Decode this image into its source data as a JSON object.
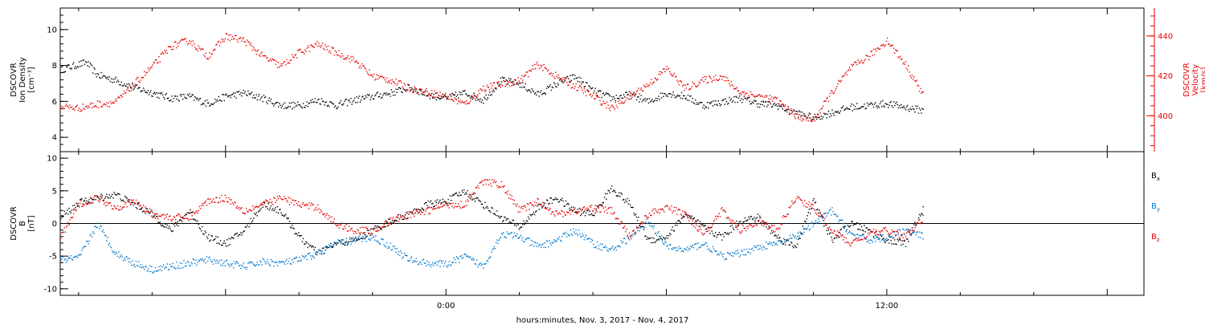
{
  "colors": {
    "black": "#000000",
    "red": "#e60000",
    "blue": "#0077cc",
    "frame": "#000000"
  },
  "xaxis": {
    "label": "hours:minutes, Nov.  3, 2017 - Nov.  4, 2017",
    "range_hours": [
      -10.5,
      19
    ],
    "major_ticks": [
      0,
      12
    ],
    "major_tick_labels": [
      "0:00",
      "12:00"
    ],
    "minor_tick_step_hours": 2
  },
  "chart_data": [
    {
      "type": "scatter",
      "panel": "top",
      "left_axis": {
        "label_lines": [
          "DSCOVR",
          "Ion Density",
          "[cm⁻³]"
        ],
        "ylim": [
          3.2,
          11.2
        ],
        "ticks": [
          4,
          6,
          8,
          10
        ],
        "tick_labels": [
          "4",
          "6",
          "8",
          "10"
        ],
        "color": "#000000"
      },
      "right_axis": {
        "label_lines": [
          "DSCOVR",
          "Velocity",
          "[km/s]"
        ],
        "ylim": [
          382,
          454
        ],
        "ticks": [
          400,
          420,
          440
        ],
        "tick_labels": [
          "400",
          "420",
          "440"
        ],
        "color": "#e60000"
      },
      "series": [
        {
          "axis": "left",
          "color": "#000000",
          "x": [
            -10.5,
            -9.8,
            -9.5,
            -9.0,
            -8.5,
            -8.0,
            -7.5,
            -7.0,
            -6.5,
            -6.0,
            -5.5,
            -5.0,
            -4.5,
            -4.0,
            -3.5,
            -3.0,
            -2.5,
            -2.0,
            -1.5,
            -1.0,
            -0.5,
            0.0,
            0.5,
            1.0,
            1.5,
            2.0,
            2.5,
            3.0,
            3.5,
            4.0,
            4.5,
            5.0,
            5.5,
            6.0,
            6.5,
            7.0,
            7.5,
            8.0,
            8.5,
            9.0,
            9.5,
            10.0,
            10.5,
            11.0,
            11.5,
            12.0,
            12.5,
            13.0
          ],
          "y": [
            7.8,
            8.2,
            7.5,
            7.2,
            6.8,
            6.5,
            6.2,
            6.3,
            5.9,
            6.3,
            6.5,
            6.2,
            5.8,
            5.8,
            6.1,
            5.8,
            6.1,
            6.3,
            6.5,
            6.8,
            6.4,
            6.2,
            6.5,
            6.1,
            7.2,
            7.0,
            6.4,
            7.0,
            7.4,
            6.6,
            6.2,
            6.4,
            6.0,
            6.5,
            6.3,
            5.8,
            6.0,
            6.2,
            5.9,
            5.8,
            5.4,
            5.1,
            5.4,
            5.7,
            5.8,
            5.9,
            5.7,
            5.5
          ]
        },
        {
          "axis": "right",
          "color": "#e60000",
          "x": [
            -10.5,
            -10.0,
            -9.5,
            -9.0,
            -8.5,
            -8.0,
            -7.5,
            -7.0,
            -6.5,
            -6.0,
            -5.5,
            -5.0,
            -4.5,
            -4.0,
            -3.5,
            -3.0,
            -2.5,
            -2.0,
            -1.5,
            -1.0,
            -0.5,
            0.0,
            0.5,
            1.0,
            1.5,
            2.0,
            2.5,
            3.0,
            3.5,
            4.0,
            4.5,
            5.0,
            5.5,
            6.0,
            6.5,
            7.0,
            7.5,
            8.0,
            8.5,
            9.0,
            9.5,
            10.0,
            10.5,
            11.0,
            11.5,
            12.0,
            12.5,
            13.0
          ],
          "y": [
            405,
            404,
            406,
            407,
            416,
            425,
            435,
            438,
            430,
            440,
            438,
            430,
            425,
            432,
            436,
            432,
            428,
            420,
            418,
            414,
            412,
            410,
            406,
            414,
            416,
            418,
            426,
            420,
            415,
            410,
            404,
            410,
            416,
            424,
            414,
            418,
            420,
            412,
            410,
            408,
            400,
            398,
            412,
            424,
            430,
            438,
            426,
            410
          ]
        }
      ]
    },
    {
      "type": "scatter",
      "panel": "bottom",
      "left_axis": {
        "label_lines": [
          "DSCOVR",
          "B",
          "[nT]"
        ],
        "ylim": [
          -11,
          11
        ],
        "ticks": [
          -10,
          -5,
          0,
          5,
          10
        ],
        "tick_labels": [
          "-10",
          "-5",
          "0",
          "5",
          "10"
        ],
        "color": "#000000"
      },
      "zero_line": true,
      "series": [
        {
          "name": "Bx",
          "color": "#000000",
          "x": [
            -10.5,
            -10.0,
            -9.5,
            -9.0,
            -8.5,
            -8.0,
            -7.5,
            -7.0,
            -6.5,
            -6.0,
            -5.5,
            -5.0,
            -4.5,
            -4.0,
            -3.5,
            -3.0,
            -2.5,
            -2.0,
            -1.5,
            -1.0,
            -0.5,
            0.0,
            0.5,
            1.0,
            1.5,
            2.0,
            2.5,
            3.0,
            3.5,
            4.0,
            4.5,
            5.0,
            5.5,
            6.0,
            6.5,
            7.0,
            7.5,
            8.0,
            8.5,
            9.0,
            9.5,
            10.0,
            10.5,
            11.0,
            11.5,
            12.0,
            12.5,
            13.0
          ],
          "y": [
            1.0,
            3.2,
            4.0,
            4.5,
            3.0,
            1.5,
            -1.0,
            2.0,
            -2.0,
            -3.0,
            -1.0,
            3.0,
            2.0,
            -2.0,
            -4.5,
            -3.0,
            -2.5,
            -1.0,
            0.5,
            1.5,
            3.0,
            3.5,
            5.0,
            3.0,
            1.0,
            -0.5,
            2.5,
            4.0,
            2.0,
            1.5,
            5.5,
            3.0,
            -2.5,
            -2.0,
            1.5,
            -0.5,
            -2.0,
            0.5,
            1.0,
            -2.0,
            -3.5,
            3.5,
            -2.5,
            0.0,
            -1.0,
            -2.5,
            -3.0,
            2.5
          ]
        },
        {
          "name": "By",
          "color": "#0077cc",
          "x": [
            -10.5,
            -10.0,
            -9.5,
            -9.0,
            -8.5,
            -8.0,
            -7.5,
            -7.0,
            -6.5,
            -6.0,
            -5.5,
            -5.0,
            -4.5,
            -4.0,
            -3.5,
            -3.0,
            -2.5,
            -2.0,
            -1.5,
            -1.0,
            -0.5,
            0.0,
            0.5,
            1.0,
            1.5,
            2.0,
            2.5,
            3.0,
            3.5,
            4.0,
            4.5,
            5.0,
            5.5,
            6.0,
            6.5,
            7.0,
            7.5,
            8.0,
            8.5,
            9.0,
            9.5,
            10.0,
            10.5,
            11.0,
            11.5,
            12.0,
            12.5,
            13.0
          ],
          "y": [
            -5.5,
            -5.2,
            0.0,
            -4.5,
            -6.0,
            -7.0,
            -6.5,
            -6.0,
            -5.5,
            -6.0,
            -6.5,
            -5.8,
            -6.0,
            -5.5,
            -4.5,
            -3.0,
            -2.5,
            -2.0,
            -3.5,
            -5.5,
            -6.0,
            -6.2,
            -5.0,
            -6.5,
            -1.5,
            -2.0,
            -3.5,
            -2.5,
            -1.0,
            -3.0,
            -4.0,
            -2.0,
            0.5,
            -3.5,
            -4.0,
            -3.0,
            -5.0,
            -4.5,
            -3.5,
            -3.0,
            -2.0,
            0.0,
            2.0,
            -1.5,
            -2.5,
            -2.0,
            -1.0,
            -2.0
          ]
        },
        {
          "name": "Bz",
          "color": "#e60000",
          "x": [
            -10.5,
            -10.0,
            -9.5,
            -9.0,
            -8.5,
            -8.0,
            -7.5,
            -7.0,
            -6.5,
            -6.0,
            -5.5,
            -5.0,
            -4.5,
            -4.0,
            -3.5,
            -3.0,
            -2.5,
            -2.0,
            -1.5,
            -1.0,
            -0.5,
            0.0,
            0.5,
            1.0,
            1.5,
            2.0,
            2.5,
            3.0,
            3.5,
            4.0,
            4.5,
            5.0,
            5.5,
            6.0,
            6.5,
            7.0,
            7.5,
            8.0,
            8.5,
            9.0,
            9.5,
            10.0,
            10.5,
            11.0,
            11.5,
            12.0,
            12.5,
            13.0
          ],
          "y": [
            -2.0,
            3.0,
            4.0,
            2.5,
            3.5,
            1.5,
            1.0,
            1.0,
            3.5,
            4.0,
            2.0,
            3.0,
            4.0,
            3.0,
            2.5,
            0.0,
            -1.0,
            -1.0,
            0.5,
            1.5,
            2.0,
            3.0,
            3.0,
            6.5,
            6.0,
            2.0,
            3.5,
            1.5,
            2.0,
            2.5,
            2.0,
            -2.0,
            1.5,
            2.5,
            1.5,
            -1.5,
            2.0,
            -1.0,
            0.5,
            -1.0,
            4.0,
            2.5,
            -1.0,
            -3.0,
            -1.5,
            -1.0,
            -2.0,
            1.0
          ]
        }
      ],
      "legend": {
        "placement": "right",
        "entries": [
          {
            "text": "B",
            "sub": "x",
            "color": "#000000"
          },
          {
            "text": "B",
            "sub": "y",
            "color": "#0077cc"
          },
          {
            "text": "B",
            "sub": "z",
            "color": "#e60000"
          }
        ]
      }
    }
  ]
}
